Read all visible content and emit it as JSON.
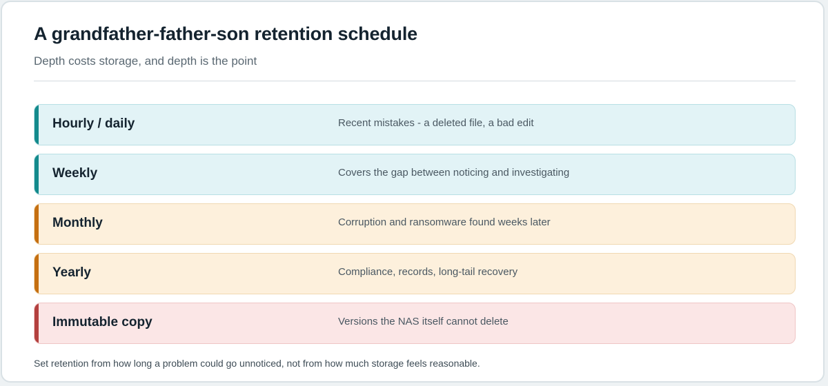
{
  "header": {
    "title": "A grandfather-father-son retention schedule",
    "subtitle": "Depth costs storage, and depth is the point"
  },
  "tiers": [
    {
      "name": "Hourly / daily",
      "description": "Recent mistakes - a deleted file, a bad edit",
      "tone": "teal",
      "accent_color": "#138a8c"
    },
    {
      "name": "Weekly",
      "description": "Covers the gap between noticing and investigating",
      "tone": "teal",
      "accent_color": "#138a8c"
    },
    {
      "name": "Monthly",
      "description": "Corruption and ransomware found weeks later",
      "tone": "amber",
      "accent_color": "#c56f10"
    },
    {
      "name": "Yearly",
      "description": "Compliance, records, long-tail recovery",
      "tone": "amber",
      "accent_color": "#c56f10"
    },
    {
      "name": "Immutable copy",
      "description": "Versions the NAS itself cannot delete",
      "tone": "red",
      "accent_color": "#b3403e"
    }
  ],
  "footnote": "Set retention from how long a problem could go unnoticed, not from how much storage feels reasonable."
}
